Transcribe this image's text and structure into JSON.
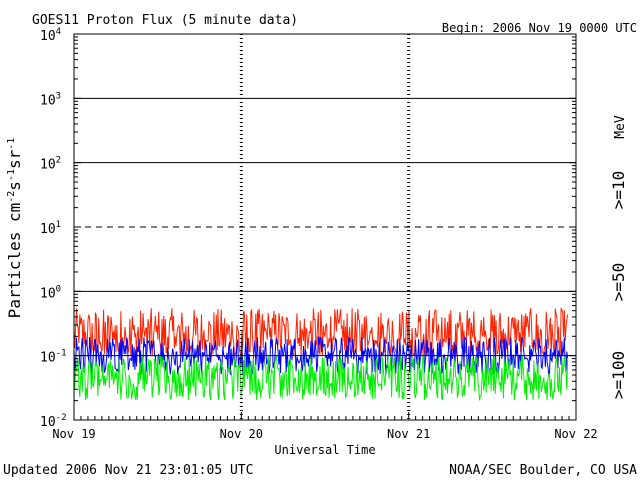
{
  "header": {
    "title": "GOES11 Proton Flux (5 minute data)",
    "begin": "Begin: 2006 Nov 19 0000 UTC"
  },
  "footer": {
    "updated": "Updated 2006 Nov 21 23:01:05 UTC",
    "credit": "NOAA/SEC Boulder, CO USA"
  },
  "chart_data": {
    "type": "line",
    "title": "GOES11 Proton Flux (5 minute data)",
    "xlabel": "Universal Time",
    "ylabel": "Particles cm-2 s-1 sr-1",
    "y_scale": "log",
    "ylim": [
      0.01,
      10000
    ],
    "xlim": [
      "2006-11-19",
      "2006-11-22"
    ],
    "y_ticks": [
      {
        "base": "10",
        "exp": "-2",
        "value": 0.01
      },
      {
        "base": "10",
        "exp": "-1",
        "value": 0.1
      },
      {
        "base": "10",
        "exp": "0",
        "value": 1
      },
      {
        "base": "10",
        "exp": "1",
        "value": 10
      },
      {
        "base": "10",
        "exp": "2",
        "value": 100
      },
      {
        "base": "10",
        "exp": "3",
        "value": 1000
      },
      {
        "base": "10",
        "exp": "4",
        "value": 10000
      }
    ],
    "x_ticks": [
      {
        "label": "Nov 19",
        "day": 0
      },
      {
        "label": "Nov 20",
        "day": 1
      },
      {
        "label": "Nov 21",
        "day": 2
      },
      {
        "label": "Nov 22",
        "day": 3
      }
    ],
    "threshold_lines": [
      {
        "value": 10,
        "style": "dashed"
      },
      {
        "value": 100,
        "style": "solid"
      },
      {
        "value": 1000,
        "style": "solid"
      },
      {
        "value": 1,
        "style": "solid"
      },
      {
        "value": 0.1,
        "style": "solid"
      }
    ],
    "units_label": "MeV",
    "series": [
      {
        "name": ">=10",
        "color": "#ff2200",
        "baseline": 0.2,
        "range": [
          0.1,
          0.55
        ]
      },
      {
        "name": ">=50",
        "color": "#0000ff",
        "baseline": 0.1,
        "range": [
          0.05,
          0.2
        ]
      },
      {
        "name": ">=100",
        "color": "#00ee00",
        "baseline": 0.045,
        "range": [
          0.02,
          0.1
        ]
      }
    ],
    "grid": "vertical day dashes"
  }
}
